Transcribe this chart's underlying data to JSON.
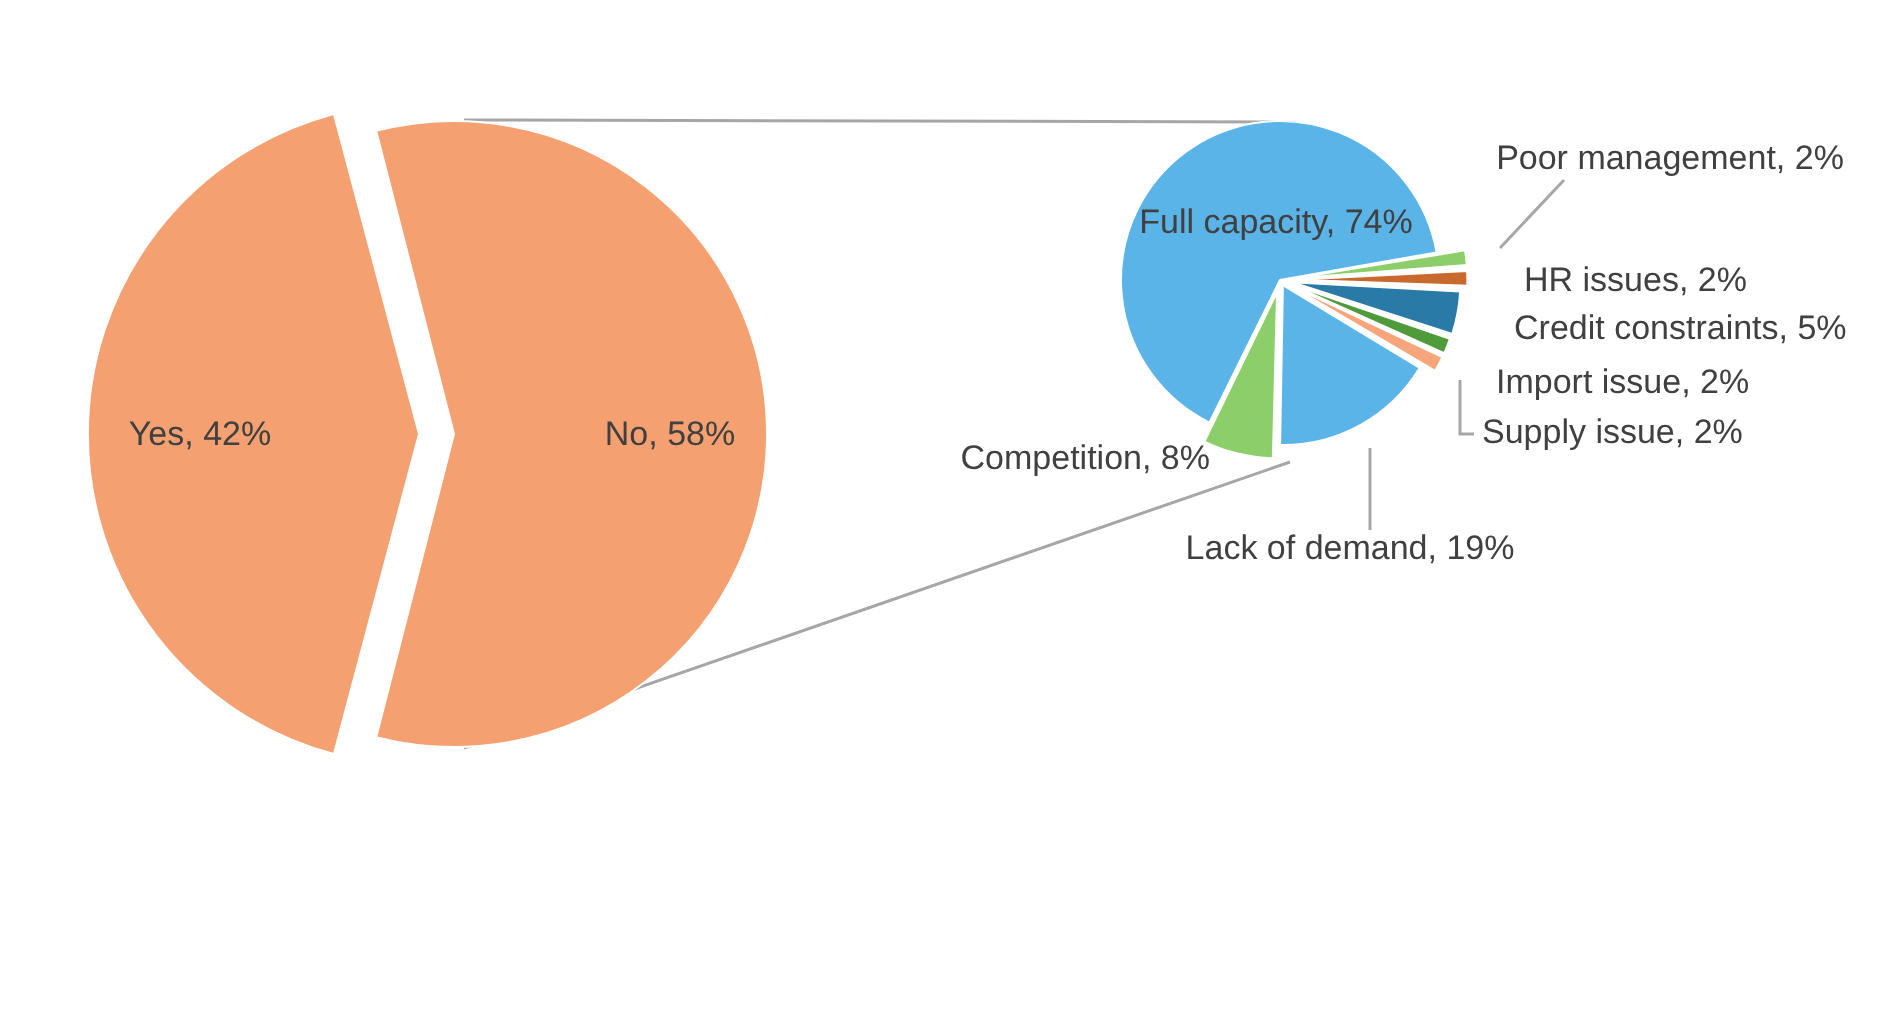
{
  "chart_data": [
    {
      "type": "pie",
      "categories": [
        "Yes",
        "No"
      ],
      "values": [
        42,
        58
      ],
      "colors": [
        "#f4a070",
        "#f4a070"
      ],
      "value_labels": [
        "42%",
        "58%"
      ]
    },
    {
      "type": "pie",
      "categories": [
        "Poor management",
        "HR issues",
        "Credit constraints",
        "Import issue",
        "Supply issue",
        "Lack of demand",
        "Competition",
        "Full capacity"
      ],
      "values": [
        2,
        2,
        5,
        2,
        2,
        19,
        8,
        74
      ],
      "colors": [
        "#8ccf6a",
        "#c8692e",
        "#2a7aa8",
        "#4f9a3a",
        "#f7a57a",
        "#5ab4e8",
        "#8ccf6a",
        "#5ab4e8"
      ],
      "value_labels": [
        "2%",
        "2%",
        "5%",
        "2%",
        "2%",
        "19%",
        "8%",
        "74%"
      ]
    }
  ]
}
